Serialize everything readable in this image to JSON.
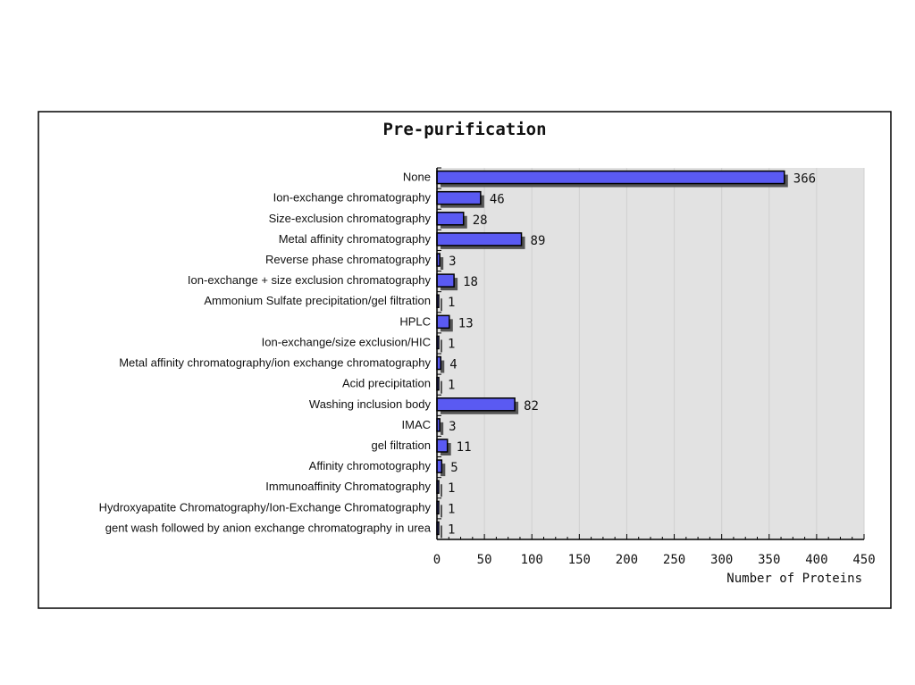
{
  "chart_data": {
    "type": "bar",
    "orientation": "horizontal",
    "title": "Pre-purification",
    "xlabel": "Number of Proteins",
    "ylabel": "",
    "xlim": [
      0,
      450
    ],
    "xticks": [
      0,
      50,
      100,
      150,
      200,
      250,
      300,
      350,
      400,
      450
    ],
    "grid": true,
    "categories": [
      "None",
      "Ion-exchange chromatography",
      "Size-exclusion chromatography",
      "Metal affinity chromatography",
      "Reverse phase chromatography",
      "Ion-exchange + size exclusion chromatography",
      "Ammonium Sulfate precipitation/gel filtration",
      "HPLC",
      "Ion-exchange/size exclusion/HIC",
      "Metal affinity chromatography/ion exchange chromatography",
      "Acid precipitation",
      "Washing inclusion body",
      "IMAC",
      "gel filtration",
      "Affinity chromotography",
      "Immunoaffinity Chromatography",
      "Hydroxyapatite Chromatography/Ion-Exchange Chromatography",
      "gent wash followed by anion exchange chromatography in urea"
    ],
    "values": [
      366,
      46,
      28,
      89,
      3,
      18,
      1,
      13,
      1,
      4,
      1,
      82,
      3,
      11,
      5,
      1,
      1,
      1
    ],
    "colors": {
      "bar": "#5a5af2",
      "shadow": "#555555",
      "plot_bg": "#e2e2e2",
      "grid": "#d0d0d0"
    }
  }
}
